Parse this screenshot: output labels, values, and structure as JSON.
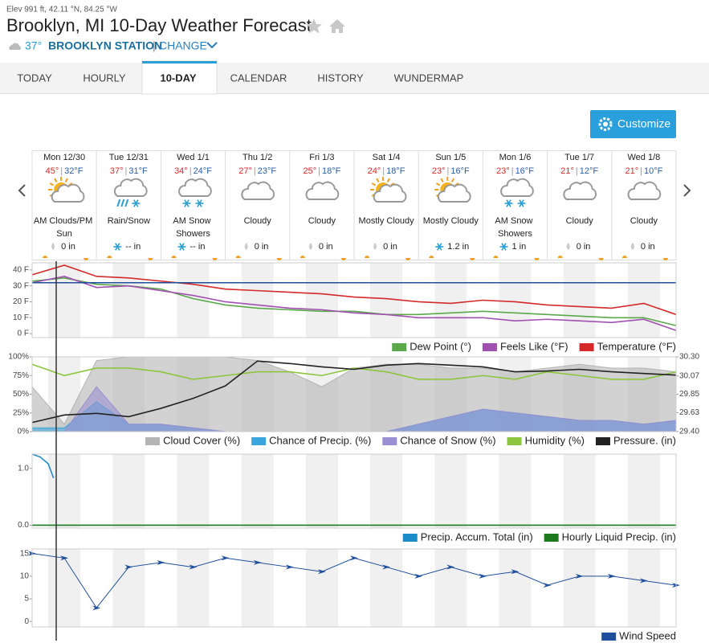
{
  "header": {
    "elevation": "Elev 991 ft, 42.11 °N, 84.25 °W",
    "title": "Brooklyn, MI 10-Day Weather Forecast",
    "current_temp": "37°",
    "station": "BROOKLYN STATION",
    "separator": "|",
    "change": "CHANGE"
  },
  "tabs": {
    "items": [
      "TODAY",
      "HOURLY",
      "10-DAY",
      "CALENDAR",
      "HISTORY",
      "WUNDERMAP"
    ],
    "active": 2
  },
  "customize_button": "Customize",
  "days": [
    {
      "date": "Mon 12/30",
      "high": "45°",
      "low": "32°F",
      "condition": "AM Clouds/PM Sun",
      "icon": "sun-cloud",
      "precip": "0 in",
      "precip_icon": "rain"
    },
    {
      "date": "Tue 12/31",
      "high": "37°",
      "low": "31°F",
      "condition": "Rain/Snow",
      "icon": "rain-snow",
      "precip": "-- in",
      "precip_icon": "snow"
    },
    {
      "date": "Wed 1/1",
      "high": "34°",
      "low": "24°F",
      "condition": "AM Snow Showers",
      "icon": "snow",
      "precip": "-- in",
      "precip_icon": "snow"
    },
    {
      "date": "Thu 1/2",
      "high": "27°",
      "low": "23°F",
      "condition": "Cloudy",
      "icon": "cloud",
      "precip": "0 in",
      "precip_icon": "rain"
    },
    {
      "date": "Fri 1/3",
      "high": "25°",
      "low": "18°F",
      "condition": "Cloudy",
      "icon": "cloud",
      "precip": "0 in",
      "precip_icon": "rain"
    },
    {
      "date": "Sat 1/4",
      "high": "24°",
      "low": "18°F",
      "condition": "Mostly Cloudy",
      "icon": "sun-cloud",
      "precip": "0 in",
      "precip_icon": "rain"
    },
    {
      "date": "Sun 1/5",
      "high": "23°",
      "low": "16°F",
      "condition": "Mostly Cloudy",
      "icon": "sun-cloud",
      "precip": "1.2 in",
      "precip_icon": "snow"
    },
    {
      "date": "Mon 1/6",
      "high": "23°",
      "low": "16°F",
      "condition": "AM Snow Showers",
      "icon": "snow",
      "precip": "1 in",
      "precip_icon": "snow"
    },
    {
      "date": "Tue 1/7",
      "high": "21°",
      "low": "12°F",
      "condition": "Cloudy",
      "icon": "cloud",
      "precip": "0 in",
      "precip_icon": "rain"
    },
    {
      "date": "Wed 1/8",
      "high": "21°",
      "low": "10°F",
      "condition": "Cloudy",
      "icon": "cloud",
      "precip": "0 in",
      "precip_icon": "rain"
    }
  ],
  "chart_data": [
    {
      "type": "line",
      "x": [
        0,
        12,
        24,
        36,
        48,
        60,
        72,
        84,
        96,
        108,
        120,
        132,
        144,
        156,
        168,
        180,
        192,
        204,
        216,
        228,
        240
      ],
      "xlim": [
        0,
        240
      ],
      "ylim": [
        -2.5,
        44.5
      ],
      "yticks": [
        {
          "value": 0,
          "label": "0 F"
        },
        {
          "value": 10,
          "label": "10 F"
        },
        {
          "value": 20,
          "label": "20 F"
        },
        {
          "value": 30,
          "label": "30 F"
        },
        {
          "value": 40,
          "label": "40 F"
        }
      ],
      "reference_line": 32,
      "reference_color": "#1f4e9c",
      "series": [
        {
          "name": "Dew Point (°)",
          "color": "#5aa84a",
          "style": "line",
          "values": [
            33,
            35,
            31,
            30,
            28,
            22,
            18,
            16,
            15,
            14,
            14,
            12,
            12,
            13,
            14,
            13,
            12,
            11,
            10,
            10,
            5
          ]
        },
        {
          "name": "Feels Like (°F)",
          "color": "#a050b0",
          "style": "line",
          "values": [
            32,
            36,
            29,
            30,
            27,
            24,
            20,
            18,
            16,
            15,
            13,
            12,
            10,
            10,
            10,
            8,
            9,
            8,
            7,
            9,
            2
          ]
        },
        {
          "name": "Temperature (°F)",
          "color": "#d42a2a",
          "style": "line",
          "values": [
            37,
            43,
            36,
            35,
            33,
            31,
            28,
            27,
            26,
            25,
            23,
            22,
            20,
            19,
            21,
            20,
            18,
            17,
            16,
            19,
            12
          ]
        }
      ]
    },
    {
      "type": "line",
      "x": [
        0,
        12,
        24,
        36,
        48,
        60,
        72,
        84,
        96,
        108,
        120,
        132,
        144,
        156,
        168,
        180,
        192,
        204,
        216,
        228,
        240
      ],
      "xlim": [
        0,
        240
      ],
      "ylim": [
        0,
        100
      ],
      "yticks": [
        {
          "value": 0,
          "label": "0%"
        },
        {
          "value": 25,
          "label": "25%"
        },
        {
          "value": 50,
          "label": "50%"
        },
        {
          "value": 75,
          "label": "75%"
        },
        {
          "value": 100,
          "label": "100%"
        }
      ],
      "y2lim": [
        29.4,
        30.3
      ],
      "y2ticks": [
        {
          "value": 29.4,
          "label": "29.40"
        },
        29.63,
        29.85,
        30.07,
        {
          "value": 30.3,
          "label": "30.30"
        }
      ],
      "series": [
        {
          "name": "Cloud Cover (%)",
          "color": "#b4b4b4",
          "style": "area",
          "values": [
            60,
            10,
            95,
            100,
            100,
            100,
            100,
            95,
            80,
            60,
            85,
            90,
            90,
            85,
            85,
            80,
            85,
            90,
            85,
            85,
            80
          ]
        },
        {
          "name": "Chance of Precip. (%)",
          "color": "#3aa6dc",
          "style": "area",
          "values": [
            5,
            5,
            40,
            10,
            10,
            5,
            0,
            0,
            0,
            0,
            0,
            0,
            10,
            20,
            30,
            25,
            20,
            15,
            15,
            10,
            15
          ]
        },
        {
          "name": "Chance of Snow (%)",
          "color": "#9a8fd0",
          "style": "area",
          "values": [
            0,
            0,
            60,
            10,
            10,
            5,
            0,
            0,
            0,
            0,
            0,
            0,
            10,
            20,
            30,
            25,
            20,
            15,
            15,
            10,
            15
          ]
        },
        {
          "name": "Humidity (%)",
          "color": "#8cc63e",
          "style": "line",
          "values": [
            90,
            75,
            85,
            85,
            80,
            70,
            75,
            80,
            80,
            75,
            85,
            80,
            70,
            70,
            75,
            70,
            80,
            75,
            70,
            70,
            80
          ]
        },
        {
          "name": "Pressure. (in)",
          "color": "#222222",
          "style": "line",
          "axis": "y2",
          "values": [
            29.51,
            29.6,
            29.62,
            29.58,
            29.68,
            29.8,
            29.95,
            30.25,
            30.22,
            30.18,
            30.15,
            30.2,
            30.22,
            30.2,
            30.18,
            30.12,
            30.13,
            30.15,
            30.12,
            30.1,
            30.08
          ]
        }
      ]
    },
    {
      "type": "line",
      "xlim": [
        0,
        240
      ],
      "ylim": [
        -0.05,
        1.25
      ],
      "yticks": [
        {
          "value": 0,
          "label": "0.0"
        },
        {
          "value": 1,
          "label": "1.0"
        }
      ],
      "series": [
        {
          "name": "Precip. Accum. Total (in)",
          "color": "#1a8cc8",
          "style": "line",
          "x": [
            0,
            3,
            6,
            8
          ],
          "values": [
            1.25,
            1.2,
            1.08,
            0.83
          ]
        },
        {
          "name": "Hourly Liquid Precip. (in)",
          "color": "#1e7a1e",
          "style": "line",
          "x": [
            0,
            240
          ],
          "values": [
            0,
            0
          ]
        }
      ]
    },
    {
      "type": "line",
      "x": [
        0,
        12,
        24,
        36,
        48,
        60,
        72,
        84,
        96,
        108,
        120,
        132,
        144,
        156,
        168,
        180,
        192,
        204,
        216,
        228,
        240
      ],
      "xlim": [
        0,
        240
      ],
      "ylim": [
        -1.2,
        16
      ],
      "yticks": [
        0,
        5,
        10,
        15
      ],
      "series": [
        {
          "name": "Wind Speed",
          "color": "#1f4e9c",
          "style": "markers",
          "values": [
            15,
            14,
            3,
            12,
            13,
            12,
            14,
            13,
            12,
            11,
            14,
            12,
            10,
            12,
            10,
            11,
            8,
            10,
            10,
            9,
            8
          ]
        }
      ]
    }
  ]
}
